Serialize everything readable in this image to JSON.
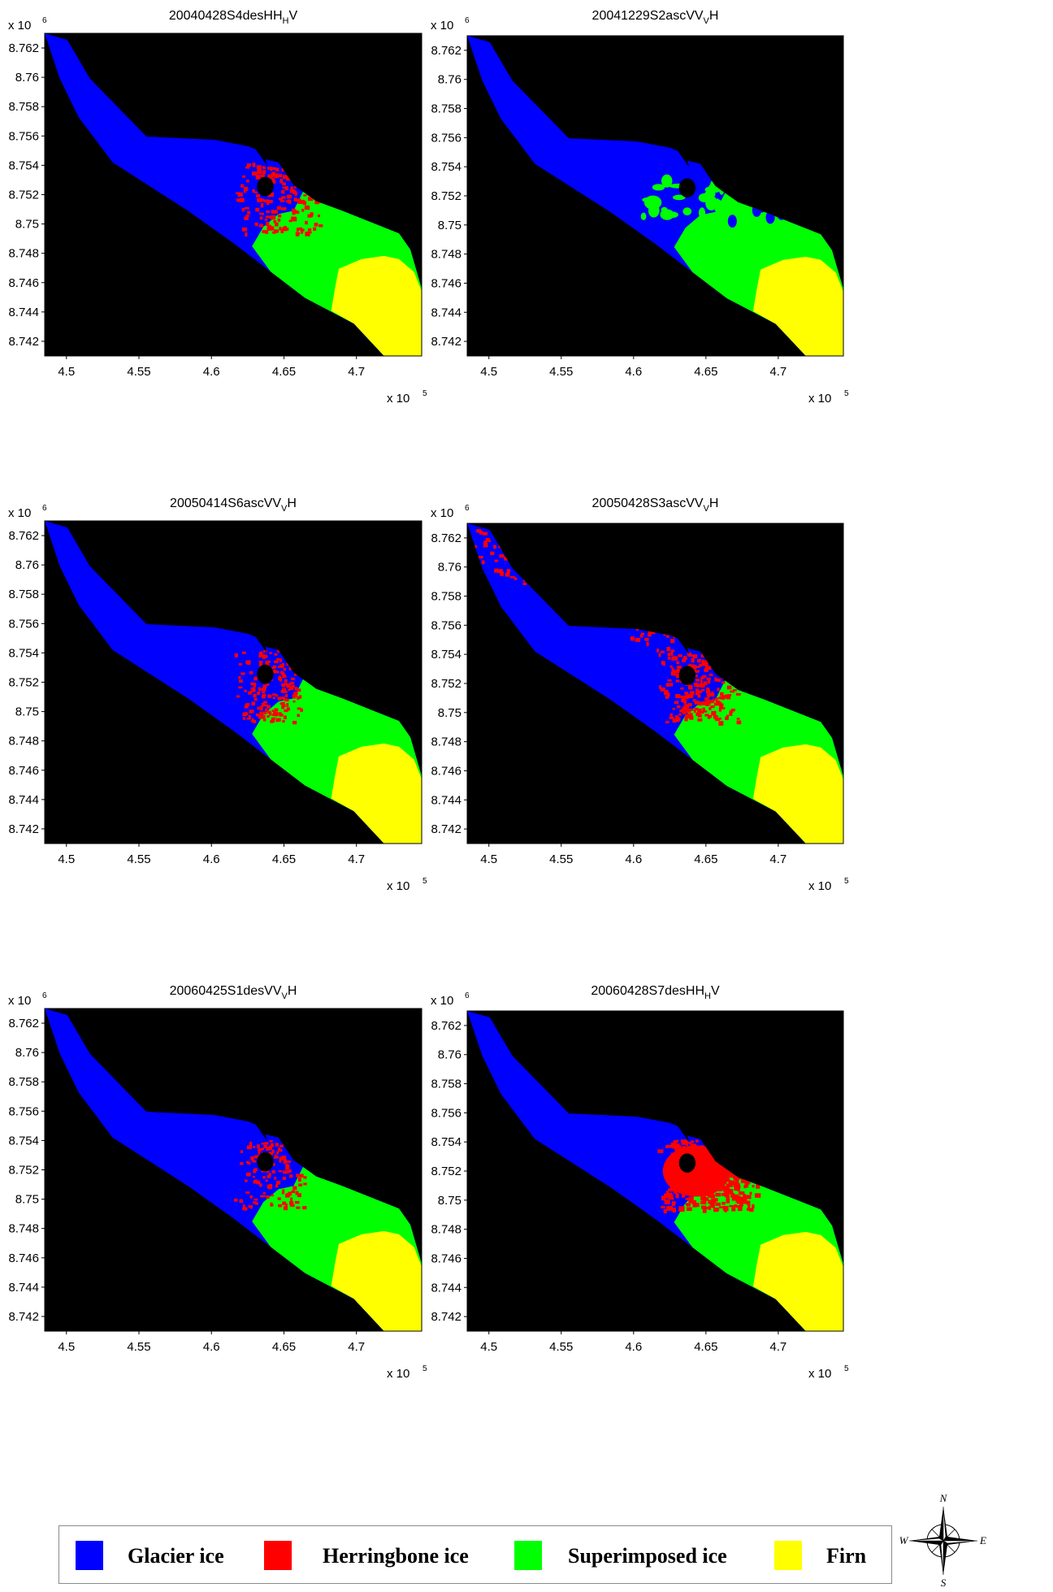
{
  "colors": {
    "glacier_ice": "#0000ff",
    "herringbone_ice": "#ff0000",
    "superimposed_ice": "#00ff00",
    "firn": "#ffff00",
    "background": "#000000"
  },
  "legend": {
    "items": [
      {
        "label": "Glacier ice",
        "color": "#0000ff"
      },
      {
        "label": "Herringbone ice",
        "color": "#ff0000"
      },
      {
        "label": "Superimposed ice",
        "color": "#00ff00"
      },
      {
        "label": "Firn",
        "color": "#ffff00"
      }
    ]
  },
  "compass": {
    "north": "N",
    "east": "E",
    "south": "S",
    "west": "W"
  },
  "chart_data": [
    {
      "type": "heatmap",
      "title": "20040428S4desHH",
      "title_sub": "H",
      "title_tail": "V",
      "x_multiplier": "x 10",
      "x_exp": "5",
      "y_multiplier": "x 10",
      "y_exp": "6",
      "xticks": [
        "4.5",
        "4.55",
        "4.6",
        "4.65",
        "4.7"
      ],
      "yticks": [
        "8.762",
        "8.76",
        "8.758",
        "8.756",
        "8.754",
        "8.752",
        "8.75",
        "8.748",
        "8.746",
        "8.744",
        "8.742"
      ],
      "xlim": [
        4.485,
        4.745
      ],
      "ylim": [
        8.741,
        8.763
      ],
      "classes": [
        "Glacier ice",
        "Herringbone ice",
        "Superimposed ice",
        "Firn"
      ],
      "class_fractions": [
        0.58,
        0.08,
        0.22,
        0.12
      ],
      "red_zone": 0.8
    },
    {
      "type": "heatmap",
      "title": "20041229S2ascVV",
      "title_sub": "V",
      "title_tail": "H",
      "x_multiplier": "x 10",
      "x_exp": "5",
      "y_multiplier": "x 10",
      "y_exp": "6",
      "xticks": [
        "4.5",
        "4.55",
        "4.6",
        "4.65",
        "4.7"
      ],
      "yticks": [
        "8.762",
        "8.76",
        "8.758",
        "8.756",
        "8.754",
        "8.752",
        "8.75",
        "8.748",
        "8.746",
        "8.744",
        "8.742"
      ],
      "xlim": [
        4.485,
        4.745
      ],
      "ylim": [
        8.741,
        8.763
      ],
      "classes": [
        "Glacier ice",
        "Herringbone ice",
        "Superimposed ice",
        "Firn"
      ],
      "class_fractions": [
        0.63,
        0.0,
        0.25,
        0.12
      ],
      "red_zone": 0.0
    },
    {
      "type": "heatmap",
      "title": "20050414S6ascVV",
      "title_sub": "V",
      "title_tail": "H",
      "x_multiplier": "x 10",
      "x_exp": "5",
      "y_multiplier": "x 10",
      "y_exp": "6",
      "xticks": [
        "4.5",
        "4.55",
        "4.6",
        "4.65",
        "4.7"
      ],
      "yticks": [
        "8.762",
        "8.76",
        "8.758",
        "8.756",
        "8.754",
        "8.752",
        "8.75",
        "8.748",
        "8.746",
        "8.744",
        "8.742"
      ],
      "xlim": [
        4.485,
        4.745
      ],
      "ylim": [
        8.741,
        8.763
      ],
      "classes": [
        "Glacier ice",
        "Herringbone ice",
        "Superimposed ice",
        "Firn"
      ],
      "class_fractions": [
        0.6,
        0.08,
        0.2,
        0.12
      ],
      "red_zone": 0.6
    },
    {
      "type": "heatmap",
      "title": "20050428S3ascVV",
      "title_sub": "V",
      "title_tail": "H",
      "x_multiplier": "x 10",
      "x_exp": "5",
      "y_multiplier": "x 10",
      "y_exp": "6",
      "xticks": [
        "4.5",
        "4.55",
        "4.6",
        "4.65",
        "4.7"
      ],
      "yticks": [
        "8.762",
        "8.76",
        "8.758",
        "8.756",
        "8.754",
        "8.752",
        "8.75",
        "8.748",
        "8.746",
        "8.744",
        "8.742"
      ],
      "xlim": [
        4.485,
        4.745
      ],
      "ylim": [
        8.741,
        8.763
      ],
      "classes": [
        "Glacier ice",
        "Herringbone ice",
        "Superimposed ice",
        "Firn"
      ],
      "class_fractions": [
        0.5,
        0.16,
        0.22,
        0.12
      ],
      "red_zone": 0.75
    },
    {
      "type": "heatmap",
      "title": "20060425S1desVV",
      "title_sub": "V",
      "title_tail": "H",
      "x_multiplier": "x 10",
      "x_exp": "5",
      "y_multiplier": "x 10",
      "y_exp": "6",
      "xticks": [
        "4.5",
        "4.55",
        "4.6",
        "4.65",
        "4.7"
      ],
      "yticks": [
        "8.762",
        "8.76",
        "8.758",
        "8.756",
        "8.754",
        "8.752",
        "8.75",
        "8.748",
        "8.746",
        "8.744",
        "8.742"
      ],
      "xlim": [
        4.485,
        4.745
      ],
      "ylim": [
        8.741,
        8.763
      ],
      "classes": [
        "Glacier ice",
        "Herringbone ice",
        "Superimposed ice",
        "Firn"
      ],
      "class_fractions": [
        0.62,
        0.06,
        0.2,
        0.12
      ],
      "red_zone": 0.65
    },
    {
      "type": "heatmap",
      "title": "20060428S7desHH",
      "title_sub": "H",
      "title_tail": "V",
      "x_multiplier": "x 10",
      "x_exp": "5",
      "y_multiplier": "x 10",
      "y_exp": "6",
      "xticks": [
        "4.5",
        "4.55",
        "4.6",
        "4.65",
        "4.7"
      ],
      "yticks": [
        "8.762",
        "8.76",
        "8.758",
        "8.756",
        "8.754",
        "8.752",
        "8.75",
        "8.748",
        "8.746",
        "8.744",
        "8.742"
      ],
      "xlim": [
        4.485,
        4.745
      ],
      "ylim": [
        8.741,
        8.763
      ],
      "classes": [
        "Glacier ice",
        "Herringbone ice",
        "Superimposed ice",
        "Firn"
      ],
      "class_fractions": [
        0.52,
        0.16,
        0.2,
        0.12
      ],
      "red_zone": 1.0
    }
  ]
}
